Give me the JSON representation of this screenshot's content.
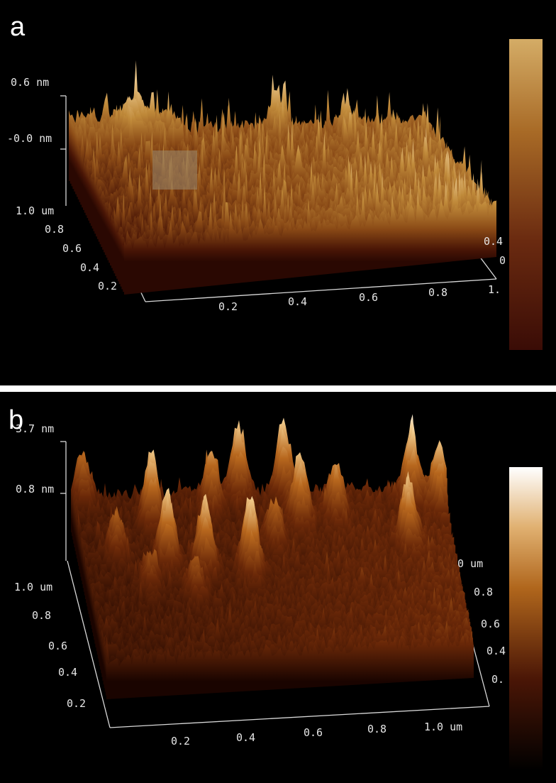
{
  "panel_a": {
    "label": "a",
    "z_axis": [
      "0.6 nm",
      "-0.0 nm"
    ],
    "y_axis": [
      "1.0 um",
      "0.8",
      "0.6",
      "0.4",
      "0.2"
    ],
    "x_axis": [
      "0.2",
      "0.4",
      "0.6",
      "0.8",
      "1."
    ],
    "right_axis": [
      "0.4",
      "0"
    ]
  },
  "panel_b": {
    "label": "b",
    "z_axis": [
      "3.7 nm",
      "0.8 nm"
    ],
    "y_axis": [
      "1.0 um",
      "0.8",
      "0.6",
      "0.4",
      "0.2"
    ],
    "x_axis": [
      "0.2",
      "0.4",
      "0.6",
      "0.8",
      "1.0 um"
    ],
    "right_axis": [
      "0 um",
      "0.8",
      "0.6",
      "0.4",
      "0."
    ]
  }
}
